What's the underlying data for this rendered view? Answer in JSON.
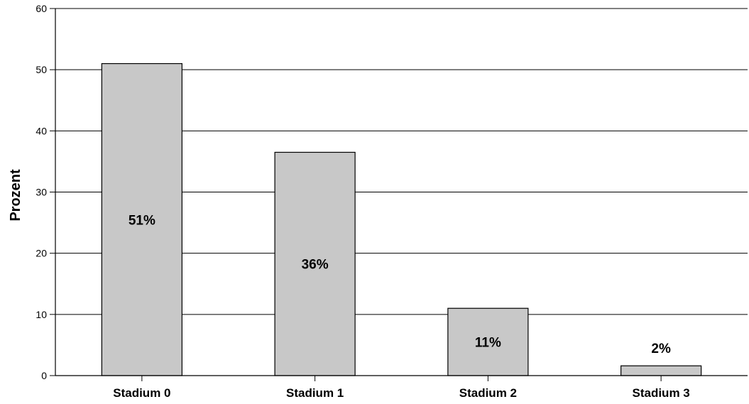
{
  "chart_data": {
    "type": "bar",
    "title": "",
    "xlabel": "",
    "ylabel": "Prozent",
    "categories": [
      "Stadium 0",
      "Stadium 1",
      "Stadium 2",
      "Stadium 3"
    ],
    "values": [
      51,
      36.5,
      11,
      1.6
    ],
    "data_labels": [
      "51%",
      "36%",
      "11%",
      "2%"
    ],
    "ylim": [
      0,
      60
    ],
    "yticks": [
      0,
      10,
      20,
      30,
      40,
      50,
      60
    ],
    "grid": "horizontal",
    "legend": "none",
    "bar_color": "#c8c8c8",
    "bar_edge_color": "#000000"
  }
}
